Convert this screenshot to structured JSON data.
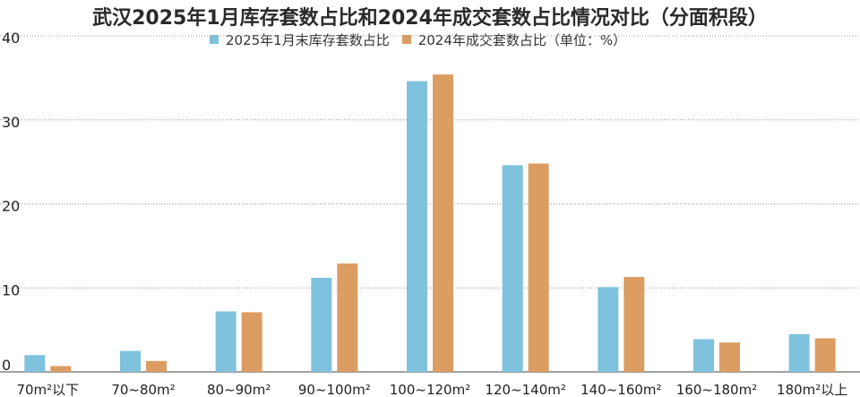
{
  "chart_data": {
    "type": "bar",
    "title": "武汉2025年1月库存套数占比和2024年成交套数占比情况对比（分面积段）",
    "categories": [
      "70m²以下",
      "70~80m²",
      "80~90m²",
      "90~100m²",
      "100~120m²",
      "120~140m²",
      "140~160m²",
      "160~180m²",
      "180m²以上"
    ],
    "series": [
      {
        "name": "2025年1月末库存套数占比",
        "color": "#7ec2dd",
        "values": [
          2.0,
          2.5,
          7.2,
          11.2,
          34.6,
          24.6,
          10.1,
          3.9,
          4.5
        ]
      },
      {
        "name": "2024年成交套数占比（单位：%）",
        "color": "#dc9d63",
        "values": [
          0.7,
          1.3,
          7.1,
          12.9,
          35.4,
          24.8,
          11.3,
          3.5,
          4.0
        ]
      }
    ],
    "yticks": [
      0,
      10,
      20,
      30,
      40
    ],
    "ylim": [
      0,
      40
    ],
    "grid": true,
    "legend_position": "top"
  }
}
